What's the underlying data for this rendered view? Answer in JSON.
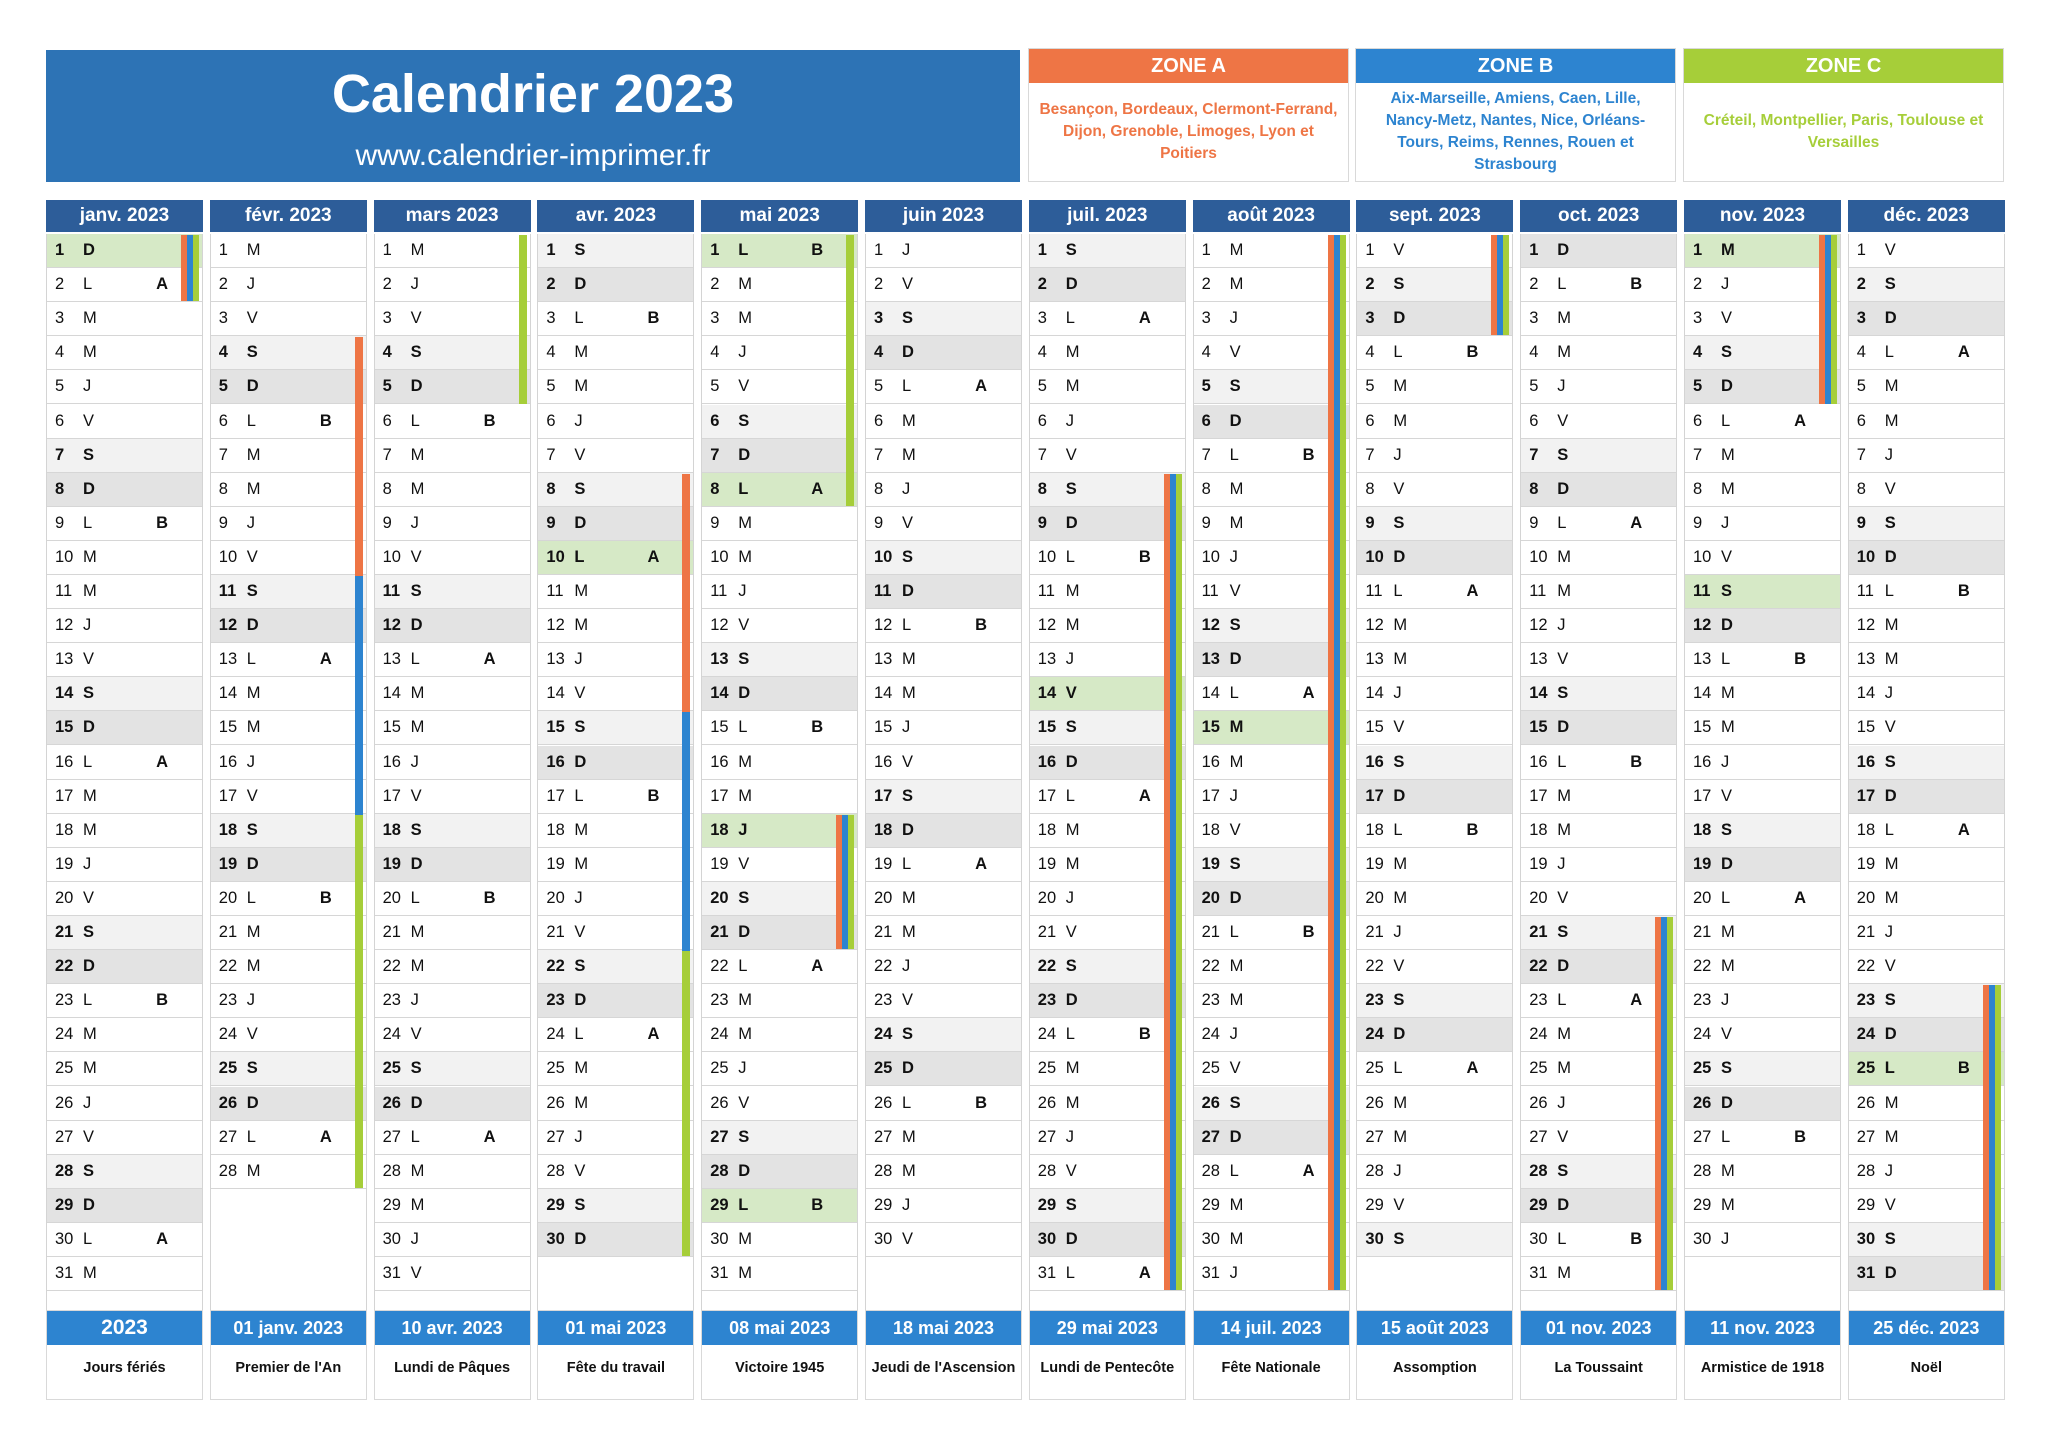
{
  "header": {
    "title": "Calendrier 2023",
    "website": "www.calendrier-imprimer.fr"
  },
  "zones": [
    {
      "label": "ZONE A",
      "color": "#ee7545",
      "cities": "Besançon, Bordeaux, Clermont-Ferrand, Dijon, Grenoble, Limoges, Lyon et Poitiers"
    },
    {
      "label": "ZONE B",
      "color": "#2d84d0",
      "cities": "Aix-Marseille, Amiens, Caen, Lille, Nancy-Metz, Nantes, Nice, Orléans-Tours, Reims, Rennes, Rouen et Strasbourg"
    },
    {
      "label": "ZONE C",
      "color": "#a6ce39",
      "cities": "Créteil, Montpellier, Paris, Toulouse et Versailles"
    }
  ],
  "week_letters": [
    "A",
    "B"
  ],
  "months": [
    {
      "name": "janv. 2023",
      "days": 31,
      "first_weekday": 6,
      "holidays": [
        1
      ],
      "week_marks": [
        [
          2,
          "A"
        ],
        [
          9,
          "B"
        ],
        [
          16,
          "A"
        ],
        [
          23,
          "B"
        ],
        [
          30,
          "A"
        ]
      ],
      "vacations": [
        {
          "zones": [
            "A",
            "B",
            "C"
          ],
          "from": 1,
          "to": 2
        }
      ]
    },
    {
      "name": "févr. 2023",
      "days": 28,
      "first_weekday": 2,
      "holidays": [],
      "week_marks": [
        [
          6,
          "B"
        ],
        [
          13,
          "A"
        ],
        [
          20,
          "B"
        ],
        [
          27,
          "A"
        ]
      ],
      "vacations": [
        {
          "zones": [
            "A"
          ],
          "from": 4,
          "to": 19
        },
        {
          "zones": [
            "B"
          ],
          "from": 11,
          "to": 26
        },
        {
          "zones": [
            "C"
          ],
          "from": 18,
          "to": 28
        }
      ]
    },
    {
      "name": "mars 2023",
      "days": 31,
      "first_weekday": 2,
      "holidays": [],
      "week_marks": [
        [
          6,
          "B"
        ],
        [
          13,
          "A"
        ],
        [
          20,
          "B"
        ],
        [
          27,
          "A"
        ]
      ],
      "vacations": [
        {
          "zones": [
            "C"
          ],
          "from": 1,
          "to": 5
        }
      ]
    },
    {
      "name": "avr. 2023",
      "days": 30,
      "first_weekday": 5,
      "holidays": [
        10
      ],
      "week_marks": [
        [
          3,
          "B"
        ],
        [
          10,
          "A"
        ],
        [
          17,
          "B"
        ],
        [
          24,
          "A"
        ]
      ],
      "vacations": [
        {
          "zones": [
            "A"
          ],
          "from": 8,
          "to": 23
        },
        {
          "zones": [
            "B"
          ],
          "from": 15,
          "to": 30
        },
        {
          "zones": [
            "C"
          ],
          "from": 22,
          "to": 30
        }
      ]
    },
    {
      "name": "mai 2023",
      "days": 31,
      "first_weekday": 0,
      "holidays": [
        1,
        8,
        18,
        29
      ],
      "week_marks": [
        [
          1,
          "B"
        ],
        [
          8,
          "A"
        ],
        [
          15,
          "B"
        ],
        [
          22,
          "A"
        ],
        [
          29,
          "B"
        ]
      ],
      "vacations": [
        {
          "zones": [
            "B"
          ],
          "from": 1,
          "to": 1
        },
        {
          "zones": [
            "C"
          ],
          "from": 1,
          "to": 8
        },
        {
          "zones": [
            "A",
            "B",
            "C"
          ],
          "from": 18,
          "to": 21
        }
      ]
    },
    {
      "name": "juin 2023",
      "days": 30,
      "first_weekday": 3,
      "holidays": [],
      "week_marks": [
        [
          5,
          "A"
        ],
        [
          12,
          "B"
        ],
        [
          19,
          "A"
        ],
        [
          26,
          "B"
        ]
      ],
      "vacations": []
    },
    {
      "name": "juil. 2023",
      "days": 31,
      "first_weekday": 5,
      "holidays": [
        14
      ],
      "week_marks": [
        [
          3,
          "A"
        ],
        [
          10,
          "B"
        ],
        [
          17,
          "A"
        ],
        [
          24,
          "B"
        ],
        [
          31,
          "A"
        ]
      ],
      "vacations": [
        {
          "zones": [
            "A",
            "B",
            "C"
          ],
          "from": 8,
          "to": 31
        }
      ]
    },
    {
      "name": "août 2023",
      "days": 31,
      "first_weekday": 1,
      "holidays": [
        15
      ],
      "week_marks": [
        [
          7,
          "B"
        ],
        [
          14,
          "A"
        ],
        [
          21,
          "B"
        ],
        [
          28,
          "A"
        ]
      ],
      "vacations": [
        {
          "zones": [
            "A",
            "B",
            "C"
          ],
          "from": 1,
          "to": 31
        }
      ]
    },
    {
      "name": "sept. 2023",
      "days": 30,
      "first_weekday": 4,
      "holidays": [],
      "week_marks": [
        [
          4,
          "B"
        ],
        [
          11,
          "A"
        ],
        [
          18,
          "B"
        ],
        [
          25,
          "A"
        ]
      ],
      "vacations": [
        {
          "zones": [
            "A",
            "B",
            "C"
          ],
          "from": 1,
          "to": 3
        }
      ]
    },
    {
      "name": "oct. 2023",
      "days": 31,
      "first_weekday": 6,
      "holidays": [],
      "week_marks": [
        [
          2,
          "B"
        ],
        [
          9,
          "A"
        ],
        [
          16,
          "B"
        ],
        [
          23,
          "A"
        ],
        [
          30,
          "B"
        ]
      ],
      "vacations": [
        {
          "zones": [
            "A",
            "B",
            "C"
          ],
          "from": 21,
          "to": 31
        }
      ]
    },
    {
      "name": "nov. 2023",
      "days": 30,
      "first_weekday": 2,
      "holidays": [
        1,
        11
      ],
      "week_marks": [
        [
          6,
          "A"
        ],
        [
          13,
          "B"
        ],
        [
          20,
          "A"
        ],
        [
          27,
          "B"
        ]
      ],
      "vacations": [
        {
          "zones": [
            "A",
            "B",
            "C"
          ],
          "from": 1,
          "to": 5
        }
      ]
    },
    {
      "name": "déc. 2023",
      "days": 31,
      "first_weekday": 4,
      "holidays": [
        25
      ],
      "week_marks": [
        [
          4,
          "A"
        ],
        [
          11,
          "B"
        ],
        [
          18,
          "A"
        ],
        [
          25,
          "B"
        ]
      ],
      "vacations": [
        {
          "zones": [
            "A",
            "B",
            "C"
          ],
          "from": 23,
          "to": 31
        }
      ]
    }
  ],
  "day_letters": [
    "L",
    "M",
    "M",
    "J",
    "V",
    "S",
    "D"
  ],
  "holidays_footer": {
    "year": "2023",
    "label": "Jours fériés",
    "items": [
      {
        "date": "01 janv. 2023",
        "name": "Premier de l'An"
      },
      {
        "date": "10 avr. 2023",
        "name": "Lundi de Pâques"
      },
      {
        "date": "01 mai 2023",
        "name": "Fête du travail"
      },
      {
        "date": "08 mai 2023",
        "name": "Victoire 1945"
      },
      {
        "date": "18 mai 2023",
        "name": "Jeudi de l'Ascension"
      },
      {
        "date": "29 mai 2023",
        "name": "Lundi de Pentecôte"
      },
      {
        "date": "14 juil. 2023",
        "name": "Fête Nationale"
      },
      {
        "date": "15 août 2023",
        "name": "Assomption"
      },
      {
        "date": "01 nov. 2023",
        "name": "La Toussaint"
      },
      {
        "date": "11 nov. 2023",
        "name": "Armistice de 1918"
      },
      {
        "date": "25 déc. 2023",
        "name": "Noël"
      }
    ]
  }
}
